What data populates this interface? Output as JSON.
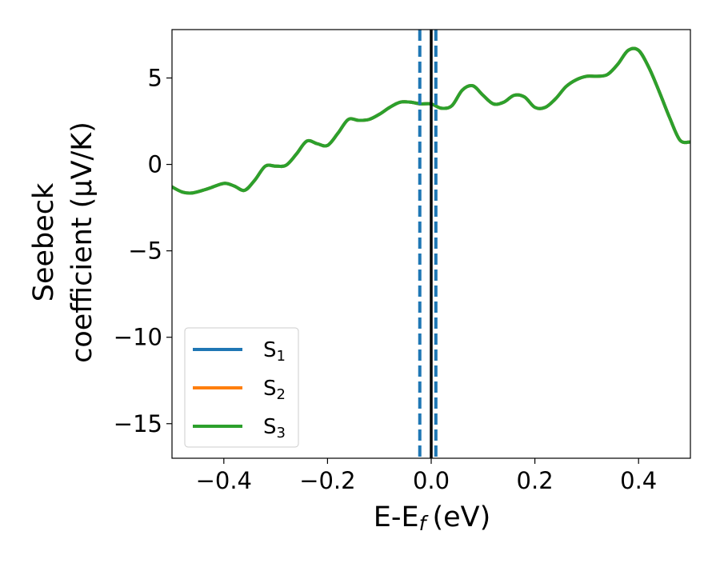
{
  "chart_data": {
    "type": "line",
    "title": "",
    "xlabel": "E-E",
    "xlabel_subscript": "f",
    "xlabel_unit": "(eV)",
    "ylabel_line1": "Seebeck",
    "ylabel_line2": "coefficient  (μV/K)",
    "xlim": [
      -0.5,
      0.5
    ],
    "ylim": [
      -17,
      7.8
    ],
    "xticks": [
      -0.4,
      -0.2,
      0.0,
      0.2,
      0.4
    ],
    "xtick_labels": [
      "−0.4",
      "−0.2",
      "0.0",
      "0.2",
      "0.4"
    ],
    "yticks": [
      -15,
      -10,
      -5,
      0,
      5
    ],
    "ytick_labels": [
      "−15",
      "−10",
      "−5",
      "0",
      "5"
    ],
    "legend_position": "lower-left",
    "series": [
      {
        "name": "S",
        "name_subscript": "1",
        "color": "#1f77b4",
        "x": [
          -0.5,
          -0.48,
          -0.46,
          -0.43,
          -0.4,
          -0.38,
          -0.36,
          -0.34,
          -0.32,
          -0.3,
          -0.28,
          -0.26,
          -0.24,
          -0.22,
          -0.2,
          -0.18,
          -0.16,
          -0.14,
          -0.12,
          -0.1,
          -0.08,
          -0.06,
          -0.04,
          -0.02,
          0.0,
          0.02,
          0.04,
          0.06,
          0.08,
          0.1,
          0.12,
          0.14,
          0.16,
          0.18,
          0.2,
          0.22,
          0.24,
          0.26,
          0.28,
          0.3,
          0.32,
          0.34,
          0.36,
          0.38,
          0.4,
          0.42,
          0.44,
          0.46,
          0.48,
          0.5
        ],
        "y": [
          -1.3,
          -1.6,
          -1.65,
          -1.4,
          -1.1,
          -1.25,
          -1.5,
          -0.9,
          -0.1,
          -0.1,
          -0.05,
          0.6,
          1.35,
          1.2,
          1.1,
          1.8,
          2.6,
          2.55,
          2.6,
          2.9,
          3.3,
          3.6,
          3.6,
          3.5,
          3.5,
          3.25,
          3.4,
          4.3,
          4.55,
          4.0,
          3.5,
          3.6,
          4.0,
          3.9,
          3.3,
          3.3,
          3.8,
          4.5,
          4.9,
          5.1,
          5.1,
          5.2,
          5.8,
          6.6,
          6.6,
          5.6,
          4.2,
          2.7,
          1.4,
          1.3
        ]
      },
      {
        "name": "S",
        "name_subscript": "2",
        "color": "#ff7f0e",
        "x": [
          -0.5,
          -0.48,
          -0.46,
          -0.43,
          -0.4,
          -0.38,
          -0.36,
          -0.34,
          -0.32,
          -0.3,
          -0.28,
          -0.26,
          -0.24,
          -0.22,
          -0.2,
          -0.18,
          -0.16,
          -0.14,
          -0.12,
          -0.1,
          -0.08,
          -0.06,
          -0.04,
          -0.02,
          0.0,
          0.02,
          0.04,
          0.06,
          0.08,
          0.1,
          0.12,
          0.14,
          0.16,
          0.18,
          0.2,
          0.22,
          0.24,
          0.26,
          0.28,
          0.3,
          0.32,
          0.34,
          0.36,
          0.38,
          0.4,
          0.42,
          0.44,
          0.46,
          0.48,
          0.5
        ],
        "y": [
          -1.3,
          -1.6,
          -1.65,
          -1.4,
          -1.1,
          -1.25,
          -1.5,
          -0.9,
          -0.1,
          -0.1,
          -0.05,
          0.6,
          1.35,
          1.2,
          1.1,
          1.8,
          2.6,
          2.55,
          2.6,
          2.9,
          3.3,
          3.6,
          3.6,
          3.5,
          3.5,
          3.25,
          3.4,
          4.3,
          4.55,
          4.0,
          3.5,
          3.6,
          4.0,
          3.9,
          3.3,
          3.3,
          3.8,
          4.5,
          4.9,
          5.1,
          5.1,
          5.2,
          5.8,
          6.6,
          6.6,
          5.6,
          4.2,
          2.7,
          1.4,
          1.3
        ]
      },
      {
        "name": "S",
        "name_subscript": "3",
        "color": "#2ca02c",
        "x": [
          -0.5,
          -0.48,
          -0.46,
          -0.43,
          -0.4,
          -0.38,
          -0.36,
          -0.34,
          -0.32,
          -0.3,
          -0.28,
          -0.26,
          -0.24,
          -0.22,
          -0.2,
          -0.18,
          -0.16,
          -0.14,
          -0.12,
          -0.1,
          -0.08,
          -0.06,
          -0.04,
          -0.02,
          0.0,
          0.02,
          0.04,
          0.06,
          0.08,
          0.1,
          0.12,
          0.14,
          0.16,
          0.18,
          0.2,
          0.22,
          0.24,
          0.26,
          0.28,
          0.3,
          0.32,
          0.34,
          0.36,
          0.38,
          0.4,
          0.42,
          0.44,
          0.46,
          0.48,
          0.5
        ],
        "y": [
          -1.3,
          -1.6,
          -1.65,
          -1.4,
          -1.1,
          -1.25,
          -1.5,
          -0.9,
          -0.1,
          -0.1,
          -0.05,
          0.6,
          1.35,
          1.2,
          1.1,
          1.8,
          2.6,
          2.55,
          2.6,
          2.9,
          3.3,
          3.6,
          3.6,
          3.5,
          3.5,
          3.25,
          3.4,
          4.3,
          4.55,
          4.0,
          3.5,
          3.6,
          4.0,
          3.9,
          3.3,
          3.3,
          3.8,
          4.5,
          4.9,
          5.1,
          5.1,
          5.2,
          5.8,
          6.6,
          6.6,
          5.6,
          4.2,
          2.7,
          1.4,
          1.3
        ]
      }
    ],
    "vertical_lines": [
      {
        "x": -0.022,
        "style": "dashed",
        "color": "#1f77b4"
      },
      {
        "x": 0.0,
        "style": "solid",
        "color": "#000000"
      },
      {
        "x": 0.009,
        "style": "dashed",
        "color": "#1f77b4"
      }
    ],
    "grid": false
  }
}
